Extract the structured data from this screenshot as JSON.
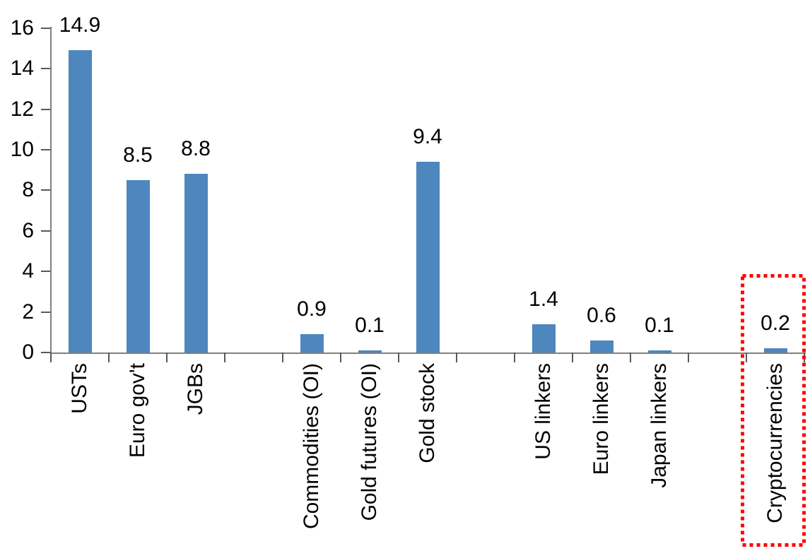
{
  "chart_data": {
    "type": "bar",
    "categories": [
      "USTs",
      "Euro gov't",
      "JGBs",
      "Commodities (OI)",
      "Gold futures (OI)",
      "Gold stock",
      "US linkers",
      "Euro linkers",
      "Japan linkers",
      "Cryptocurrencies"
    ],
    "values": [
      14.9,
      8.5,
      8.8,
      0.9,
      0.1,
      9.4,
      1.4,
      0.6,
      0.1,
      0.2
    ],
    "value_labels": [
      "14.9",
      "8.5",
      "8.8",
      "0.9",
      "0.1",
      "9.4",
      "1.4",
      "0.6",
      "0.1",
      "0.2"
    ],
    "yticks": [
      0,
      2,
      4,
      6,
      8,
      10,
      12,
      14,
      16
    ],
    "ylim": [
      0,
      16
    ],
    "gap_after_indices": [
      2,
      5,
      8
    ],
    "highlighted_index": 9,
    "highlighted_category": "Cryptocurrencies",
    "title": "",
    "xlabel": "",
    "ylabel": "",
    "grid": "off",
    "legend": "none",
    "x_label_rotation_deg": 90,
    "bar_color": "#4D87BE",
    "axis_line_color": "#808080",
    "tick_color": "#595959",
    "text_color": "#000000",
    "highlight_box_color": "#FF0000"
  }
}
